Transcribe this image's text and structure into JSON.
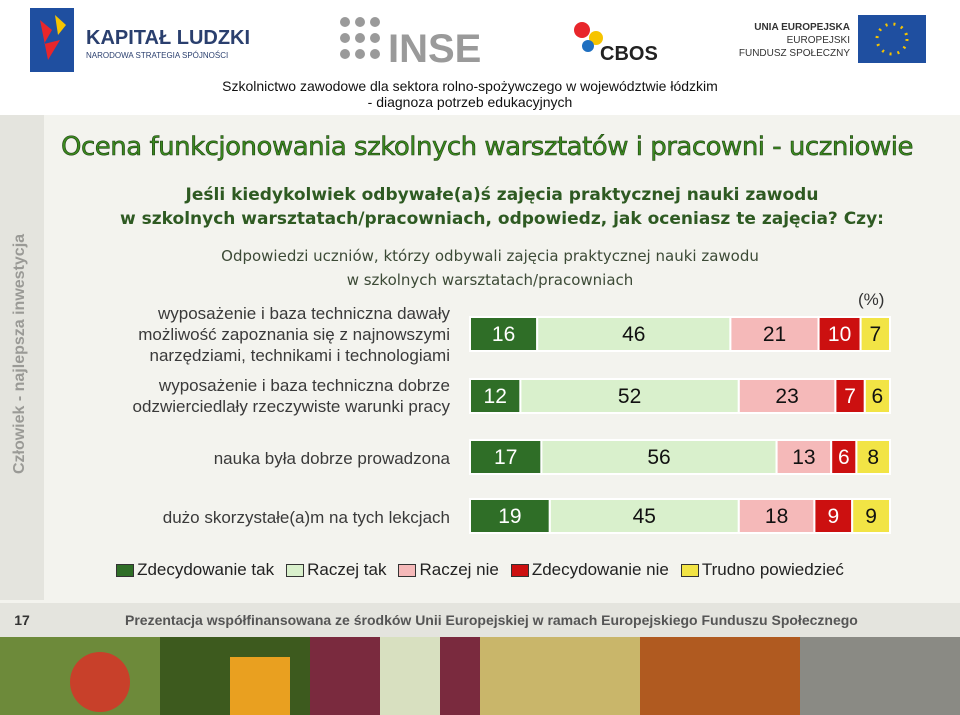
{
  "header": {
    "logo_left_title": "KAPITAŁ LUDZKI",
    "logo_left_subtitle": "NARODOWA STRATEGIA SPÓJNOŚCI",
    "logo_inse": "INSE",
    "logo_cbos": "CBOS",
    "logo_eu": [
      "UNIA EUROPEJSKA",
      "EUROPEJSKI",
      "FUNDUSZ SPOŁECZNY"
    ],
    "project_title": "Szkolnictwo zawodowe dla sektora rolno-spożywczego w województwie łódzkim",
    "project_subtitle": "- diagnoza potrzeb edukacyjnych"
  },
  "sidebar": "Człowiek - najlepsza inwestycja",
  "slide": {
    "title": "Ocena funkcjonowania szkolnych warsztatów i pracowni - uczniowie",
    "question": "Jeśli kiedykolwiek odbywałe(a)ś zajęcia praktycznej nauki zawodu\nw szkolnych warsztatach/pracowniach, odpowiedz, jak oceniasz te zajęcia? Czy:",
    "note": "Odpowiedzi  uczniów, którzy odbywali zajęcia praktycznej nauki zawodu\nw szkolnych warsztatach/pracowniach"
  },
  "chart_data": {
    "type": "bar",
    "stacked": true,
    "unit_label": "(%)",
    "xlim": [
      0,
      100
    ],
    "categories": [
      "wyposażenie i baza techniczna dawały\nmożliwość zapoznania się z najnowszymi\nnarzędziami, technikami i technologiami",
      "wyposażenie i baza techniczna dobrze\nodzwierciedlały rzeczywiste warunki pracy",
      "nauka była dobrze prowadzona",
      "dużo skorzystałe(a)m na tych lekcjach"
    ],
    "series": [
      {
        "name": "Zdecydowanie tak",
        "color": "#2f6e27",
        "values": [
          16,
          12,
          17,
          19
        ]
      },
      {
        "name": "Raczej tak",
        "color": "#d9f0cc",
        "values": [
          46,
          52,
          56,
          45
        ]
      },
      {
        "name": "Raczej nie",
        "color": "#f5b9b9",
        "values": [
          21,
          23,
          13,
          18
        ]
      },
      {
        "name": "Zdecydowanie nie",
        "color": "#cc1010",
        "values": [
          10,
          7,
          6,
          9
        ]
      },
      {
        "name": "Trudno powiedzieć",
        "color": "#f2e445",
        "values": [
          7,
          6,
          8,
          9
        ]
      }
    ]
  },
  "footer": {
    "page": "17",
    "text": "Prezentacja współfinansowana ze środków Unii Europejskiej w ramach Europejskiego Funduszu Społecznego"
  }
}
